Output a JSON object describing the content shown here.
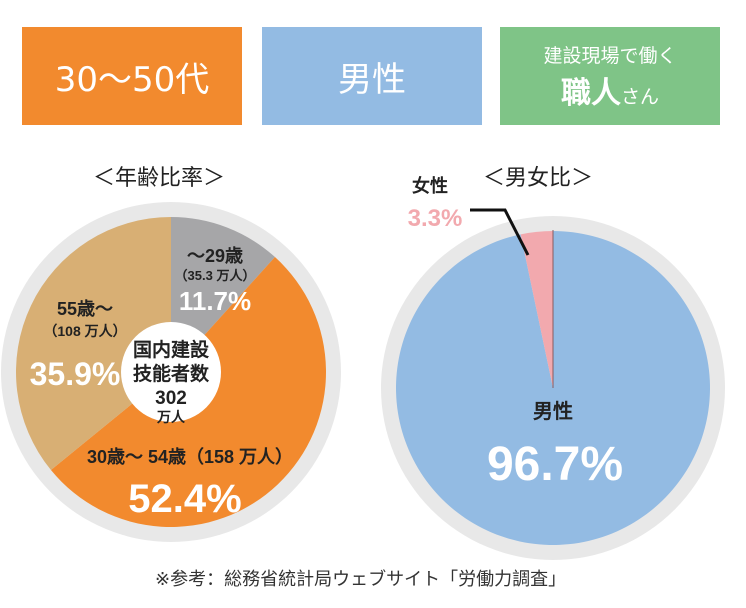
{
  "banners": [
    {
      "text": "30〜50代",
      "suffix": "",
      "color": "#f28a2e"
    },
    {
      "text": "男性",
      "color": "#93bbe3"
    },
    {
      "line1": "建設現場で働く",
      "line2": "職人",
      "line2_suffix": "さん",
      "color": "#7fc487"
    }
  ],
  "source": "※参考：総務省統計局ウェブサイト「労働力調査」",
  "chart_data": [
    {
      "type": "pie",
      "title": "＜年齢比率＞",
      "center_label": [
        "国内建設",
        "技能者数",
        "302",
        "万人"
      ],
      "start": "top",
      "direction": "clockwise",
      "slices": [
        {
          "label": "〜29歳",
          "sub": "（35.3 万人）",
          "value": 11.7,
          "pct": "11.7%",
          "color": "#a6a6a8"
        },
        {
          "label": "30歳〜 54歳（158 万人）",
          "sub": "",
          "value": 52.4,
          "pct": "52.4%",
          "color": "#f28a2e"
        },
        {
          "label": "55歳〜",
          "sub": "（108 万人）",
          "value": 35.9,
          "pct": "35.9%",
          "color": "#d8af74"
        }
      ]
    },
    {
      "type": "pie",
      "title": "＜男女比＞",
      "start": "top",
      "direction": "clockwise",
      "slices": [
        {
          "label": "男性",
          "value": 96.7,
          "pct": "96.7%",
          "color": "#93bbe3"
        },
        {
          "label": "女性",
          "value": 3.3,
          "pct": "3.3%",
          "color": "#f2a9ae"
        }
      ]
    }
  ]
}
